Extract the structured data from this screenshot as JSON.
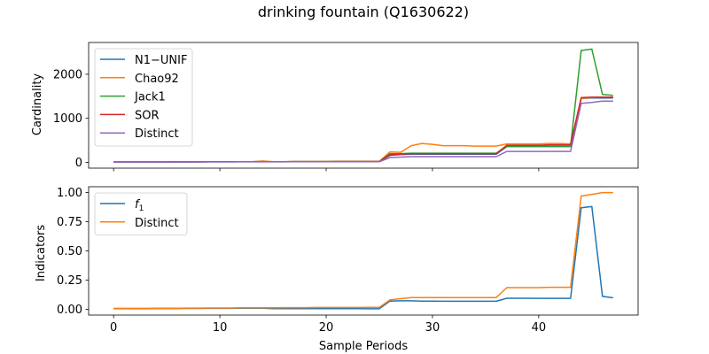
{
  "figure": {
    "title": "drinking fountain (Q1630622)"
  },
  "chart_data": [
    {
      "type": "line",
      "title": "",
      "xlabel": "",
      "ylabel": "Cardinality",
      "xlim": [
        -2.35,
        49.35
      ],
      "ylim": [
        -130,
        2720
      ],
      "xticks": [
        0,
        10,
        20,
        30,
        40
      ],
      "xtick_labels": [
        "",
        "",
        "",
        "",
        ""
      ],
      "yticks": [
        0,
        1000,
        2000
      ],
      "ytick_labels": [
        "0",
        "1000",
        "2000"
      ],
      "grid": false,
      "legend_position": "top-left",
      "x": [
        0,
        1,
        2,
        3,
        4,
        5,
        6,
        7,
        8,
        9,
        10,
        11,
        12,
        13,
        14,
        15,
        16,
        17,
        18,
        19,
        20,
        21,
        22,
        23,
        24,
        25,
        26,
        27,
        28,
        29,
        30,
        31,
        32,
        33,
        34,
        35,
        36,
        37,
        38,
        39,
        40,
        41,
        42,
        43,
        44,
        45,
        46,
        47
      ],
      "series": [
        {
          "name": "N1−UNIF",
          "color": "#1f77b4",
          "values": [
            10,
            10,
            10,
            10,
            10,
            10,
            12,
            12,
            13,
            14,
            15,
            15,
            16,
            17,
            18,
            16,
            17,
            18,
            18,
            19,
            19,
            20,
            20,
            20,
            20,
            20,
            160,
            180,
            185,
            185,
            185,
            185,
            185,
            185,
            185,
            185,
            185,
            360,
            360,
            360,
            360,
            360,
            360,
            360,
            1450,
            1460,
            1460,
            1460
          ]
        },
        {
          "name": "Chao92",
          "color": "#ff7f0e",
          "values": [
            10,
            10,
            10,
            10,
            10,
            10,
            12,
            12,
            13,
            14,
            15,
            15,
            16,
            17,
            30,
            16,
            17,
            18,
            18,
            19,
            19,
            20,
            20,
            20,
            20,
            20,
            240,
            230,
            380,
            430,
            410,
            380,
            380,
            380,
            370,
            370,
            370,
            420,
            420,
            420,
            420,
            430,
            430,
            420,
            1450,
            1470,
            1480,
            1480
          ]
        },
        {
          "name": "Jack1",
          "color": "#2ca02c",
          "values": [
            10,
            10,
            10,
            10,
            10,
            10,
            12,
            12,
            13,
            14,
            15,
            15,
            16,
            17,
            18,
            16,
            17,
            18,
            18,
            19,
            19,
            20,
            20,
            20,
            20,
            20,
            200,
            200,
            210,
            210,
            210,
            210,
            210,
            210,
            210,
            210,
            210,
            370,
            370,
            370,
            370,
            370,
            370,
            370,
            2540,
            2570,
            1540,
            1520
          ]
        },
        {
          "name": "SOR",
          "color": "#d62728",
          "values": [
            10,
            10,
            10,
            10,
            10,
            10,
            12,
            12,
            13,
            14,
            15,
            15,
            16,
            17,
            18,
            16,
            17,
            18,
            18,
            19,
            19,
            20,
            20,
            20,
            20,
            20,
            180,
            190,
            200,
            200,
            200,
            200,
            200,
            200,
            200,
            200,
            200,
            390,
            390,
            390,
            390,
            400,
            400,
            400,
            1470,
            1480,
            1480,
            1480
          ]
        },
        {
          "name": "Distinct",
          "color": "#9467bd",
          "values": [
            8,
            8,
            8,
            8,
            8,
            8,
            9,
            9,
            10,
            10,
            11,
            11,
            12,
            12,
            13,
            12,
            13,
            14,
            14,
            15,
            15,
            15,
            15,
            15,
            15,
            15,
            110,
            120,
            130,
            130,
            130,
            130,
            130,
            130,
            130,
            130,
            130,
            250,
            250,
            250,
            250,
            250,
            250,
            250,
            1340,
            1360,
            1390,
            1390
          ]
        }
      ]
    },
    {
      "type": "line",
      "title": "",
      "xlabel": "Sample Periods",
      "ylabel": "Indicators",
      "xlim": [
        -2.35,
        49.35
      ],
      "ylim": [
        -0.05,
        1.05
      ],
      "xticks": [
        0,
        10,
        20,
        30,
        40
      ],
      "xtick_labels": [
        "0",
        "10",
        "20",
        "30",
        "40"
      ],
      "yticks": [
        0,
        0.25,
        0.5,
        0.75,
        1.0
      ],
      "ytick_labels": [
        "0.00",
        "0.25",
        "0.50",
        "0.75",
        "1.00"
      ],
      "grid": false,
      "legend_position": "top-left",
      "x": [
        0,
        1,
        2,
        3,
        4,
        5,
        6,
        7,
        8,
        9,
        10,
        11,
        12,
        13,
        14,
        15,
        16,
        17,
        18,
        19,
        20,
        21,
        22,
        23,
        24,
        25,
        26,
        27,
        28,
        29,
        30,
        31,
        32,
        33,
        34,
        35,
        36,
        37,
        38,
        39,
        40,
        41,
        42,
        43,
        44,
        45,
        46,
        47
      ],
      "series": [
        {
          "name": "f1",
          "name_base": "f",
          "name_sub": "1",
          "color": "#1f77b4",
          "values": [
            0.005,
            0.005,
            0.005,
            0.005,
            0.006,
            0.006,
            0.006,
            0.007,
            0.007,
            0.008,
            0.008,
            0.008,
            0.009,
            0.009,
            0.009,
            0.005,
            0.005,
            0.005,
            0.005,
            0.005,
            0.005,
            0.005,
            0.005,
            0.005,
            0.004,
            0.004,
            0.07,
            0.072,
            0.072,
            0.07,
            0.07,
            0.068,
            0.068,
            0.068,
            0.068,
            0.068,
            0.068,
            0.094,
            0.094,
            0.094,
            0.093,
            0.093,
            0.093,
            0.093,
            0.87,
            0.88,
            0.11,
            0.098
          ]
        },
        {
          "name": "Distinct",
          "color": "#ff7f0e",
          "values": [
            0.008,
            0.008,
            0.008,
            0.008,
            0.009,
            0.009,
            0.009,
            0.01,
            0.01,
            0.011,
            0.011,
            0.011,
            0.012,
            0.012,
            0.013,
            0.013,
            0.014,
            0.014,
            0.014,
            0.015,
            0.015,
            0.015,
            0.015,
            0.015,
            0.016,
            0.016,
            0.08,
            0.09,
            0.1,
            0.1,
            0.1,
            0.1,
            0.1,
            0.1,
            0.1,
            0.1,
            0.1,
            0.185,
            0.185,
            0.185,
            0.185,
            0.188,
            0.188,
            0.188,
            0.97,
            0.985,
            1.0,
            1.0
          ]
        }
      ]
    }
  ]
}
